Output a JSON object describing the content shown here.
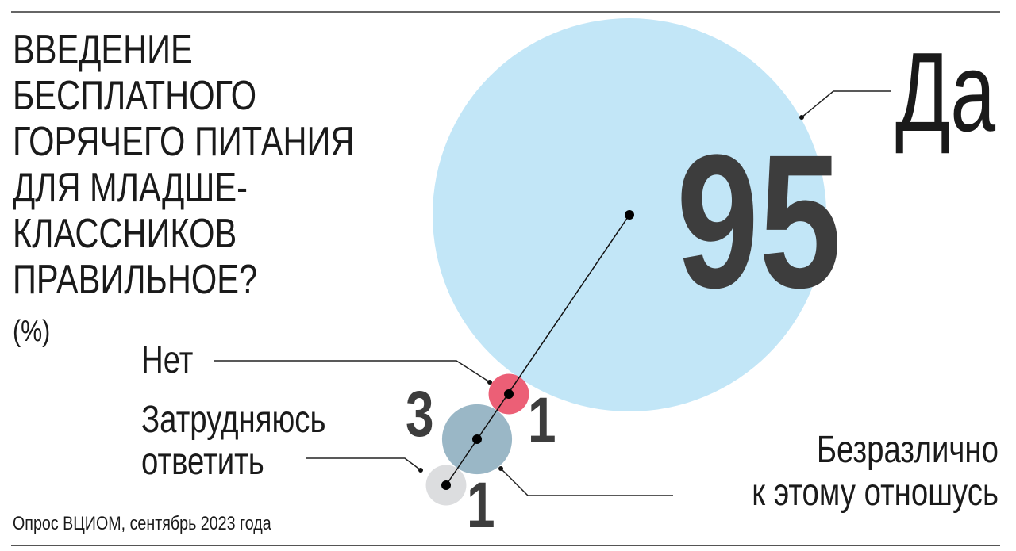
{
  "chart_data": {
    "type": "bubble",
    "title_lines": [
      "ВВЕДЕНИЕ",
      "БЕСПЛАТНОГО",
      "ГОРЯЧЕГО ПИТАНИЯ",
      "ДЛЯ МЛАДШЕ-",
      "КЛАССНИКОВ",
      "ПРАВИЛЬНОЕ?"
    ],
    "unit": "(%)",
    "series": [
      {
        "label": [
          "Да"
        ],
        "value": 95,
        "value_label": "95",
        "color": "#c2e6f7"
      },
      {
        "label": [
          "Нет"
        ],
        "value": 1,
        "value_label": "1",
        "color": "#ec5f76"
      },
      {
        "label": [
          "Безразлично",
          "к этому отношусь"
        ],
        "value": 3,
        "value_label": "3",
        "color": "#9ab7c6"
      },
      {
        "label": [
          "Затрудняюсь",
          "ответить"
        ],
        "value": 1,
        "value_label": "1",
        "color": "#dcdddf"
      }
    ],
    "source": "Опрос ВЦИОМ, сентябрь 2023 года"
  }
}
